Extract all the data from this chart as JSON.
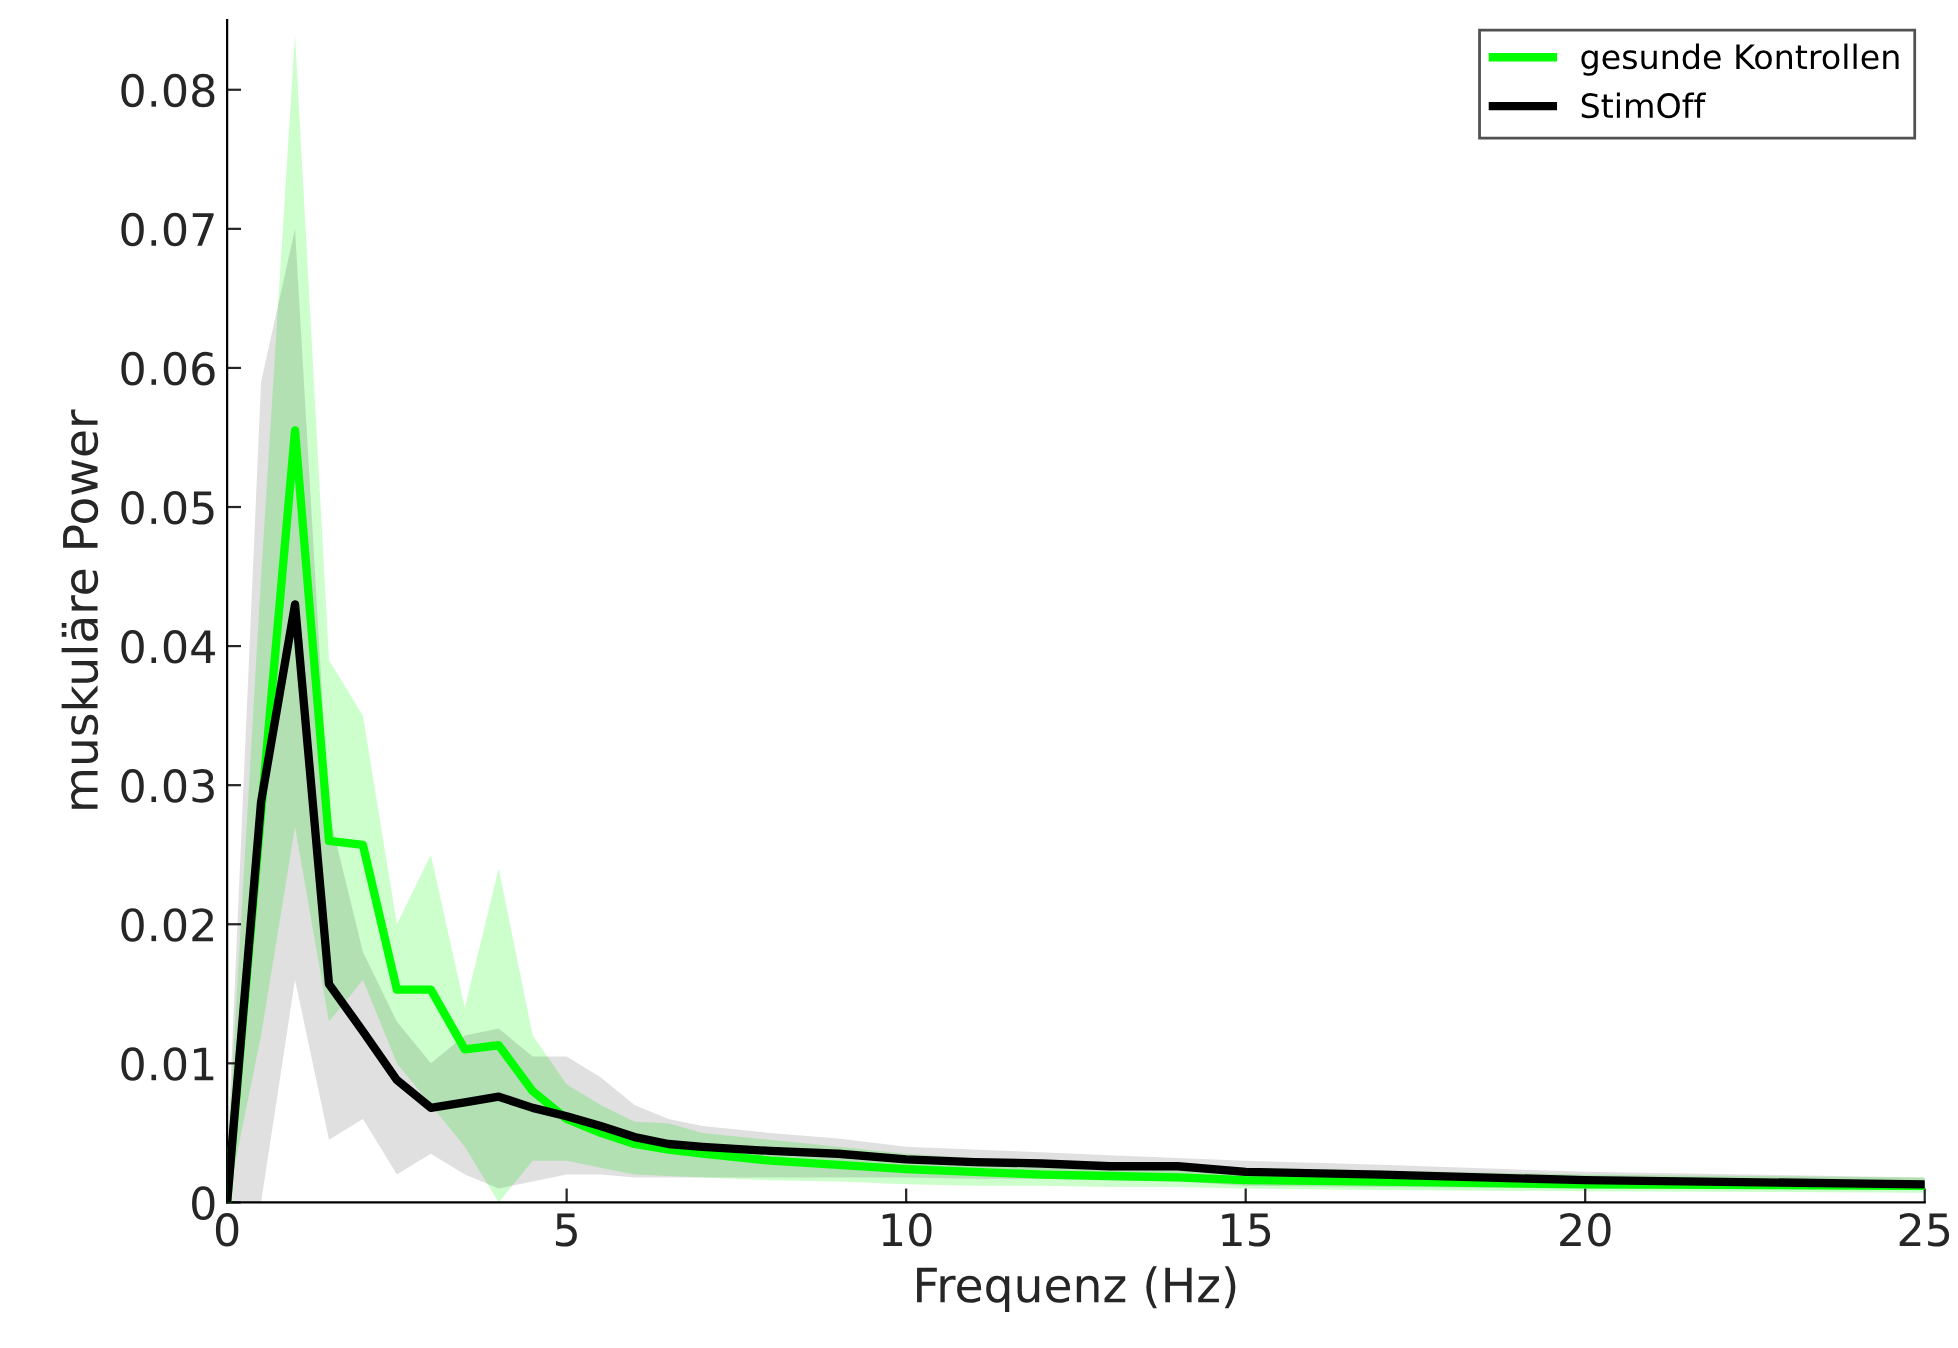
{
  "chart_data": {
    "type": "line",
    "xlabel": "Frequenz (Hz)",
    "ylabel": "muskuläre Power",
    "x": [
      0,
      0.5,
      1,
      1.5,
      2,
      2.5,
      3,
      3.5,
      4,
      4.5,
      5,
      5.5,
      6,
      6.5,
      7,
      8,
      9,
      10,
      11,
      12,
      13,
      14,
      15,
      17,
      20,
      25
    ],
    "series": [
      {
        "name": "gesunde Kontrollen",
        "color": "#00ff00",
        "values": [
          0,
          0.028,
          0.0555,
          0.026,
          0.0257,
          0.0153,
          0.0153,
          0.011,
          0.0113,
          0.008,
          0.006,
          0.005,
          0.0042,
          0.0038,
          0.0035,
          0.003,
          0.0027,
          0.0024,
          0.0022,
          0.002,
          0.0019,
          0.0018,
          0.0016,
          0.0015,
          0.0013,
          0.0012
        ],
        "upper": [
          0.003,
          0.045,
          0.084,
          0.039,
          0.035,
          0.02,
          0.025,
          0.014,
          0.024,
          0.012,
          0.0085,
          0.007,
          0.0058,
          0.0057,
          0.005,
          0.0045,
          0.004,
          0.0035,
          0.0032,
          0.003,
          0.0028,
          0.0027,
          0.0025,
          0.0023,
          0.002,
          0.0018
        ],
        "lower": [
          0,
          0.012,
          0.027,
          0.013,
          0.016,
          0.01,
          0.007,
          0.004,
          0,
          0.003,
          0.003,
          0.0025,
          0.002,
          0.0019,
          0.0018,
          0.0016,
          0.0015,
          0.0013,
          0.0012,
          0.0012,
          0.0011,
          0.0011,
          0.001,
          0.0009,
          0.0008,
          0.0007
        ]
      },
      {
        "name": "StimOff",
        "color": "#000000",
        "values": [
          0,
          0.0288,
          0.043,
          0.0157,
          0.0123,
          0.0088,
          0.0068,
          0.0072,
          0.0076,
          0.0068,
          0.0062,
          0.0055,
          0.0047,
          0.0042,
          0.004,
          0.0037,
          0.0035,
          0.0031,
          0.0029,
          0.0028,
          0.0026,
          0.0026,
          0.0022,
          0.002,
          0.0016,
          0.0013
        ],
        "upper": [
          0.003,
          0.059,
          0.07,
          0.028,
          0.018,
          0.013,
          0.01,
          0.012,
          0.0125,
          0.0105,
          0.0105,
          0.009,
          0.007,
          0.006,
          0.0055,
          0.005,
          0.0046,
          0.004,
          0.0038,
          0.0036,
          0.0034,
          0.0032,
          0.003,
          0.0027,
          0.0022,
          0.0018
        ],
        "lower": [
          0,
          0,
          0.016,
          0.0045,
          0.006,
          0.002,
          0.0035,
          0.002,
          0.001,
          0.0015,
          0.002,
          0.002,
          0.0018,
          0.0018,
          0.0018,
          0.0018,
          0.0018,
          0.0018,
          0.0017,
          0.0017,
          0.0016,
          0.0015,
          0.0012,
          0.0011,
          0.001,
          0.0009
        ]
      }
    ],
    "xlim": [
      0,
      25
    ],
    "xticks": [
      0,
      5,
      10,
      15,
      20,
      25
    ],
    "ylim": [
      0,
      0.085
    ],
    "yticks": [
      0,
      0.01,
      0.02,
      0.03,
      0.04,
      0.05,
      0.06,
      0.07,
      0.08
    ],
    "legend": "top right",
    "grid": false,
    "line_style": "solid",
    "marker": "none"
  }
}
